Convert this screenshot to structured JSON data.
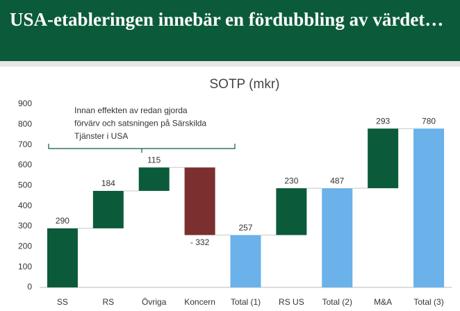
{
  "header": {
    "title": "USA-etableringen innebär en fördubbling av värdet…"
  },
  "chart_data": {
    "type": "waterfall",
    "title": "SOTP (mkr)",
    "annotation": [
      "Innan effekten av redan gjorda",
      "förvärv och satsningen på Särskilda",
      "Tjänster i USA"
    ],
    "categories": [
      "SS",
      "RS",
      "Övriga",
      "Koncern",
      "Total (1)",
      "RS US",
      "Total (2)",
      "M&A",
      "Total (3)"
    ],
    "values": [
      290,
      184,
      115,
      -332,
      257,
      230,
      487,
      293,
      780
    ],
    "value_labels": [
      "290",
      "184",
      "115",
      "- 332",
      "257",
      "230",
      "487",
      "293",
      "780"
    ],
    "is_total": [
      false,
      false,
      false,
      false,
      true,
      false,
      true,
      false,
      true
    ],
    "colors": [
      "#0b5b3b",
      "#0b5b3b",
      "#0b5b3b",
      "#7b2f2f",
      "#6ab2e9",
      "#0b5b3b",
      "#6ab2e9",
      "#0b5b3b",
      "#6ab2e9"
    ],
    "ylim": [
      0,
      900
    ],
    "yticks": [
      0,
      100,
      200,
      300,
      400,
      500,
      600,
      700,
      800,
      900
    ],
    "grid": false
  }
}
